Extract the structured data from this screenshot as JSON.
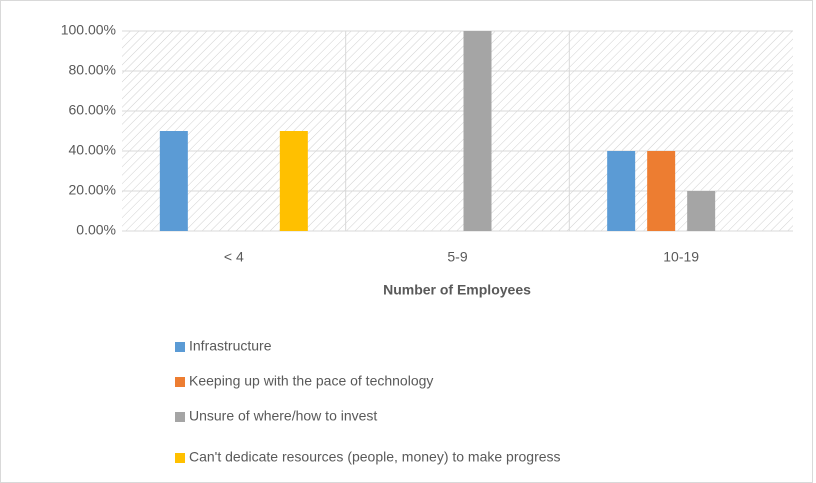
{
  "chart_data": {
    "type": "bar",
    "x_label": "Number of Employees",
    "categories": [
      "< 4",
      "5-9",
      "10-19"
    ],
    "series": [
      {
        "name": "Infrastructure",
        "color": "#5b9bd5",
        "values": [
          50,
          0,
          40
        ]
      },
      {
        "name": "Keeping up with the pace of technology",
        "color": "#ed7d31",
        "values": [
          0,
          0,
          40
        ]
      },
      {
        "name": "Unsure of where/how to invest",
        "color": "#a5a5a5",
        "values": [
          0,
          100,
          20
        ]
      },
      {
        "name": "Can't dedicate resources (people, money) to make progress",
        "color": "#ffc000",
        "values": [
          50,
          0,
          0
        ]
      }
    ],
    "ylim": [
      0,
      100
    ],
    "yticks": [
      {
        "value": 0,
        "label": "0.00%"
      },
      {
        "value": 20,
        "label": "20.00%"
      },
      {
        "value": 40,
        "label": "40.00%"
      },
      {
        "value": 60,
        "label": "60.00%"
      },
      {
        "value": 80,
        "label": "80.00%"
      },
      {
        "value": 100,
        "label": "100.00%"
      }
    ],
    "grid": true,
    "legend": "bottom"
  }
}
